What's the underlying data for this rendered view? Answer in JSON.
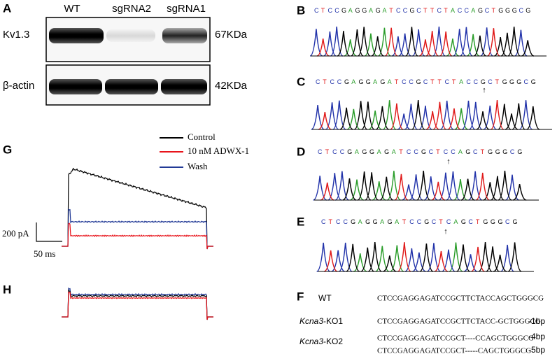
{
  "panels": {
    "a": {
      "label": "A",
      "lanes": [
        "WT",
        "sgRNA2",
        "sgRNA1"
      ],
      "rows": [
        {
          "protein": "Kv1.3",
          "size": "67KDa"
        },
        {
          "protein": "β-actin",
          "size": "42KDa"
        }
      ]
    },
    "b": {
      "label": "B",
      "sequence": "CTCCGAGGAGATCCGCTTCTACCAGCTGGGCG"
    },
    "c": {
      "label": "C",
      "sequence": "CTCCGAGGAGATCCGCTTCTACCGCTGGGCG"
    },
    "d": {
      "label": "D",
      "sequence": "CTCCGAGGAGATCCGCTCCAGCTGGGCG"
    },
    "e": {
      "label": "E",
      "sequence": "CTCCGAGGAGATCCGCTCAGCTGGGCG"
    },
    "f": {
      "label": "F",
      "rows": [
        {
          "name": "WT",
          "sequence": "CTCCGAGGAGATCCGCTTCTACCAGCTGGGCG"
        },
        {
          "gene": "Kcna3",
          "suffix": "-KO1",
          "sequence": "CTCCGAGGAGATCCGCTTCTACC-GCTGGGCG",
          "deletion": "-1bp"
        },
        {
          "gene": "Kcna3",
          "suffix": "-KO2",
          "sequence": "CTCCGAGGAGATCCGCT----CCAGCTGGGCG",
          "deletion": "-4bp"
        },
        {
          "sequence": "CTCCGAGGAGATCCGCT-----CAGCTGGGCG",
          "deletion": "-5bp"
        }
      ]
    },
    "g": {
      "label": "G",
      "legend": [
        "Control",
        "10 nM ADWX-1",
        "Wash"
      ],
      "scale_current": "200 pA",
      "scale_time": "50 ms"
    },
    "h": {
      "label": "H"
    }
  }
}
